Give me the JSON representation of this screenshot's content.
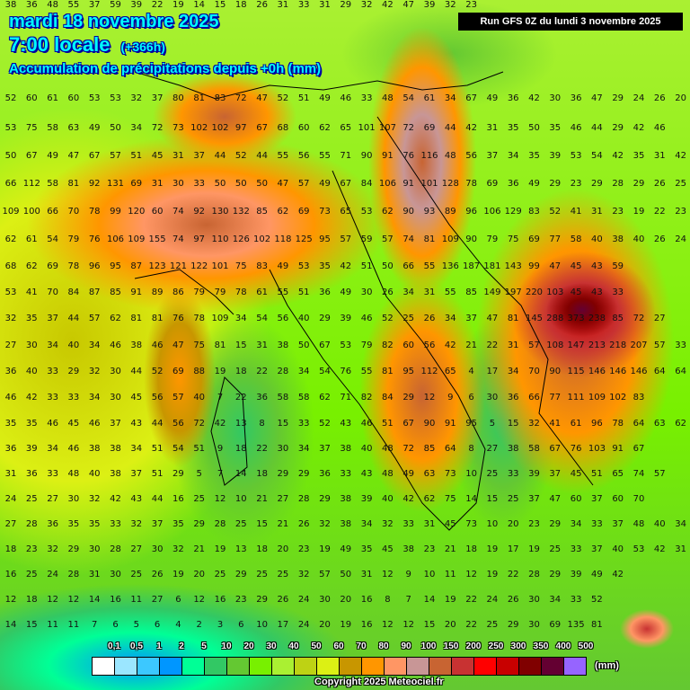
{
  "header": {
    "date": "mardi 18 novembre 2025",
    "time": "7:00 locale",
    "lead": "(+366h)",
    "parameter": "Accumulation de précipitations depuis +0h (mm)",
    "run": "Run GFS 0Z du lundi 3 novembre 2025"
  },
  "legend": {
    "unit": "(mm)",
    "labels": [
      "0,1",
      "0,5",
      "1",
      "2",
      "5",
      "10",
      "20",
      "30",
      "40",
      "50",
      "60",
      "70",
      "80",
      "90",
      "100",
      "150",
      "200",
      "250",
      "300",
      "350",
      "400",
      "500"
    ],
    "colors": [
      "#ffffff",
      "#9be6ff",
      "#3cc8ff",
      "#0096ff",
      "#00ff96",
      "#32c864",
      "#64c832",
      "#78f000",
      "#aaf032",
      "#bed214",
      "#dcf014",
      "#c89600",
      "#ff9600",
      "#ff9664",
      "#c89696",
      "#c86432",
      "#c83232",
      "#ff0000",
      "#c80000",
      "#800000",
      "#640032",
      "#9664ff"
    ]
  },
  "copyright": "Copyright 2025 Meteociel.fr",
  "grid": [
    [
      38,
      36,
      48,
      55,
      37,
      59,
      39,
      22,
      19,
      14,
      15,
      18,
      26,
      31,
      33,
      31,
      29,
      32,
      42,
      47,
      39,
      32,
      23
    ],
    [
      52,
      60,
      61,
      60,
      53,
      53,
      32,
      37,
      80,
      81,
      83,
      72,
      47,
      52,
      51,
      49,
      46,
      33,
      48,
      54,
      61,
      34,
      67,
      49,
      36,
      42,
      30,
      36,
      47,
      29,
      24,
      26,
      20
    ],
    [
      53,
      75,
      58,
      63,
      49,
      50,
      34,
      72,
      73,
      102,
      102,
      97,
      67,
      68,
      60,
      62,
      65,
      101,
      107,
      72,
      69,
      44,
      42,
      31,
      35,
      50,
      35,
      46,
      44,
      29,
      42,
      46
    ],
    [
      50,
      67,
      49,
      47,
      67,
      57,
      51,
      45,
      31,
      37,
      44,
      52,
      44,
      55,
      56,
      55,
      71,
      90,
      91,
      76,
      116,
      48,
      56,
      37,
      34,
      35,
      39,
      53,
      54,
      42,
      35,
      31,
      42
    ],
    [
      66,
      112,
      58,
      81,
      92,
      131,
      69,
      31,
      30,
      33,
      50,
      50,
      50,
      47,
      57,
      49,
      67,
      84,
      106,
      91,
      101,
      128,
      78,
      69,
      36,
      49,
      29,
      23,
      29,
      28,
      29,
      26,
      25
    ],
    [
      109,
      100,
      66,
      70,
      78,
      99,
      120,
      60,
      74,
      92,
      130,
      132,
      85,
      62,
      69,
      73,
      65,
      53,
      62,
      90,
      93,
      89,
      96,
      106,
      129,
      83,
      52,
      41,
      31,
      23,
      19,
      22,
      23
    ],
    [
      62,
      61,
      54,
      79,
      76,
      106,
      109,
      155,
      74,
      97,
      110,
      126,
      102,
      118,
      125,
      95,
      57,
      59,
      57,
      74,
      81,
      109,
      90,
      79,
      75,
      69,
      77,
      58,
      40,
      38,
      40,
      26,
      24
    ],
    [
      68,
      62,
      69,
      78,
      96,
      95,
      87,
      123,
      121,
      122,
      101,
      75,
      83,
      49,
      53,
      35,
      42,
      51,
      50,
      66,
      55,
      136,
      187,
      181,
      143,
      99,
      47,
      45,
      43,
      59
    ],
    [
      53,
      41,
      70,
      84,
      87,
      85,
      91,
      89,
      86,
      79,
      79,
      78,
      61,
      55,
      51,
      36,
      49,
      30,
      26,
      34,
      31,
      55,
      85,
      149,
      197,
      220,
      103,
      45,
      43,
      33
    ],
    [
      32,
      35,
      37,
      44,
      57,
      62,
      81,
      81,
      76,
      78,
      109,
      34,
      54,
      56,
      40,
      29,
      39,
      46,
      52,
      25,
      26,
      34,
      37,
      47,
      81,
      145,
      288,
      373,
      238,
      85,
      72,
      27
    ],
    [
      27,
      30,
      34,
      40,
      34,
      46,
      38,
      46,
      47,
      75,
      81,
      15,
      31,
      38,
      50,
      67,
      53,
      79,
      82,
      60,
      56,
      42,
      21,
      22,
      31,
      57,
      108,
      147,
      213,
      218,
      207,
      57,
      33
    ],
    [
      36,
      40,
      33,
      29,
      32,
      30,
      44,
      52,
      69,
      88,
      19,
      18,
      22,
      28,
      34,
      54,
      76,
      55,
      81,
      95,
      112,
      65,
      4,
      17,
      34,
      70,
      90,
      115,
      146,
      146,
      146,
      64,
      64
    ],
    [
      46,
      42,
      33,
      33,
      34,
      30,
      45,
      56,
      57,
      40,
      7,
      22,
      36,
      58,
      58,
      62,
      71,
      82,
      84,
      29,
      12,
      9,
      6,
      30,
      36,
      66,
      77,
      111,
      109,
      102,
      83
    ],
    [
      35,
      35,
      46,
      45,
      46,
      37,
      43,
      44,
      56,
      72,
      42,
      13,
      8,
      15,
      33,
      52,
      43,
      46,
      51,
      67,
      90,
      91,
      95,
      5,
      15,
      32,
      41,
      61,
      96,
      78,
      64,
      63,
      62
    ],
    [
      36,
      39,
      34,
      46,
      38,
      38,
      34,
      51,
      54,
      51,
      9,
      18,
      22,
      30,
      34,
      37,
      38,
      40,
      48,
      72,
      85,
      64,
      8,
      27,
      38,
      58,
      67,
      76,
      103,
      91,
      67
    ],
    [
      31,
      36,
      33,
      48,
      40,
      38,
      37,
      51,
      29,
      5,
      7,
      14,
      18,
      29,
      29,
      36,
      33,
      43,
      48,
      49,
      63,
      73,
      10,
      25,
      33,
      39,
      37,
      45,
      51,
      65,
      74,
      57
    ],
    [
      24,
      25,
      27,
      30,
      32,
      42,
      43,
      44,
      16,
      25,
      12,
      10,
      21,
      27,
      28,
      29,
      38,
      39,
      40,
      42,
      62,
      75,
      14,
      15,
      25,
      37,
      47,
      60,
      37,
      60,
      70
    ],
    [
      27,
      28,
      36,
      35,
      35,
      33,
      32,
      37,
      35,
      29,
      28,
      25,
      15,
      21,
      26,
      32,
      38,
      34,
      32,
      33,
      31,
      45,
      73,
      10,
      20,
      23,
      29,
      34,
      33,
      37,
      48,
      40,
      34
    ],
    [
      18,
      23,
      32,
      29,
      30,
      28,
      27,
      30,
      32,
      21,
      19,
      13,
      18,
      20,
      23,
      19,
      49,
      35,
      45,
      38,
      23,
      21,
      18,
      19,
      17,
      19,
      25,
      33,
      37,
      40,
      53,
      42,
      31
    ],
    [
      16,
      25,
      24,
      28,
      31,
      30,
      25,
      26,
      19,
      20,
      25,
      29,
      25,
      25,
      32,
      57,
      50,
      31,
      12,
      9,
      10,
      11,
      12,
      19,
      22,
      28,
      29,
      39,
      49,
      42
    ],
    [
      12,
      18,
      12,
      12,
      14,
      16,
      11,
      27,
      6,
      12,
      16,
      23,
      29,
      26,
      24,
      30,
      20,
      16,
      8,
      7,
      14,
      19,
      22,
      24,
      26,
      30,
      34,
      33,
      52
    ],
    [
      14,
      15,
      11,
      11,
      7,
      6,
      5,
      6,
      4,
      2,
      3,
      6,
      10,
      17,
      24,
      20,
      19,
      16,
      12,
      12,
      15,
      20,
      22,
      25,
      29,
      30,
      69,
      135,
      81
    ]
  ]
}
